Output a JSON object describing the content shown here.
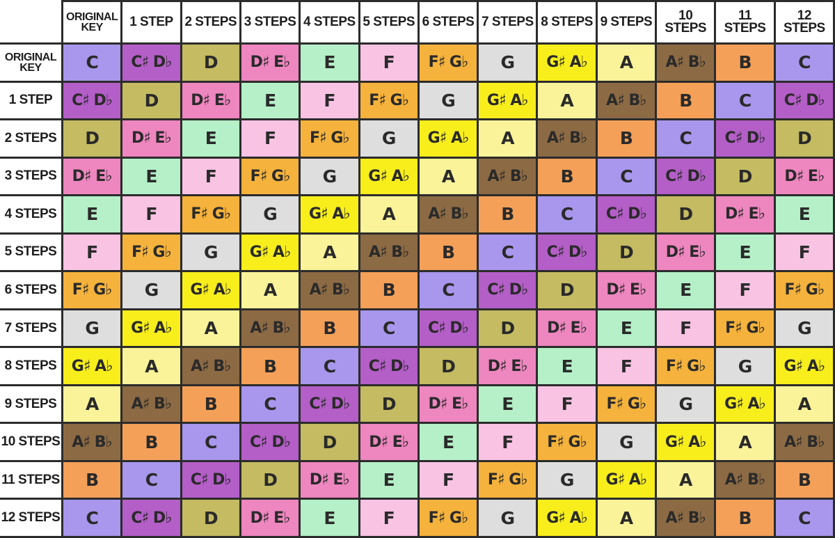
{
  "chart_data": {
    "type": "table",
    "column_headers": [
      "ORIGINAL\nKEY",
      "1 STEP",
      "2 STEPS",
      "3 STEPS",
      "4 STEPS",
      "5 STEPS",
      "6 STEPS",
      "7 STEPS",
      "8 STEPS",
      "9 STEPS",
      "10 STEPS",
      "11 STEPS",
      "12 STEPS"
    ],
    "row_headers": [
      "ORIGINAL\nKEY",
      "1 STEP",
      "2 STEPS",
      "3 STEPS",
      "4 STEPS",
      "5 STEPS",
      "6 STEPS",
      "7 STEPS",
      "8 STEPS",
      "9 STEPS",
      "10 STEPS",
      "11 STEPS",
      "12 STEPS"
    ],
    "note_sequence": [
      "C",
      "C♯ D♭",
      "D",
      "D♯ E♭",
      "E",
      "F",
      "F♯ G♭",
      "G",
      "G♯ A♭",
      "A",
      "A♯ B♭",
      "B"
    ],
    "note_colors": {
      "C": "#a897ec",
      "C♯ D♭": "#b45ec8",
      "D": "#c4bb62",
      "D♯ E♭": "#ee86bf",
      "E": "#b5f0c8",
      "F": "#f9c3e4",
      "F♯ G♭": "#f5b23c",
      "G": "#dedede",
      "G♯ A♭": "#f8ee1c",
      "A": "#faf39a",
      "A♯ B♭": "#8c6a44",
      "B": "#f4a058"
    },
    "rule": "cell[r][c] = note_sequence[(r + c) mod 12]"
  }
}
